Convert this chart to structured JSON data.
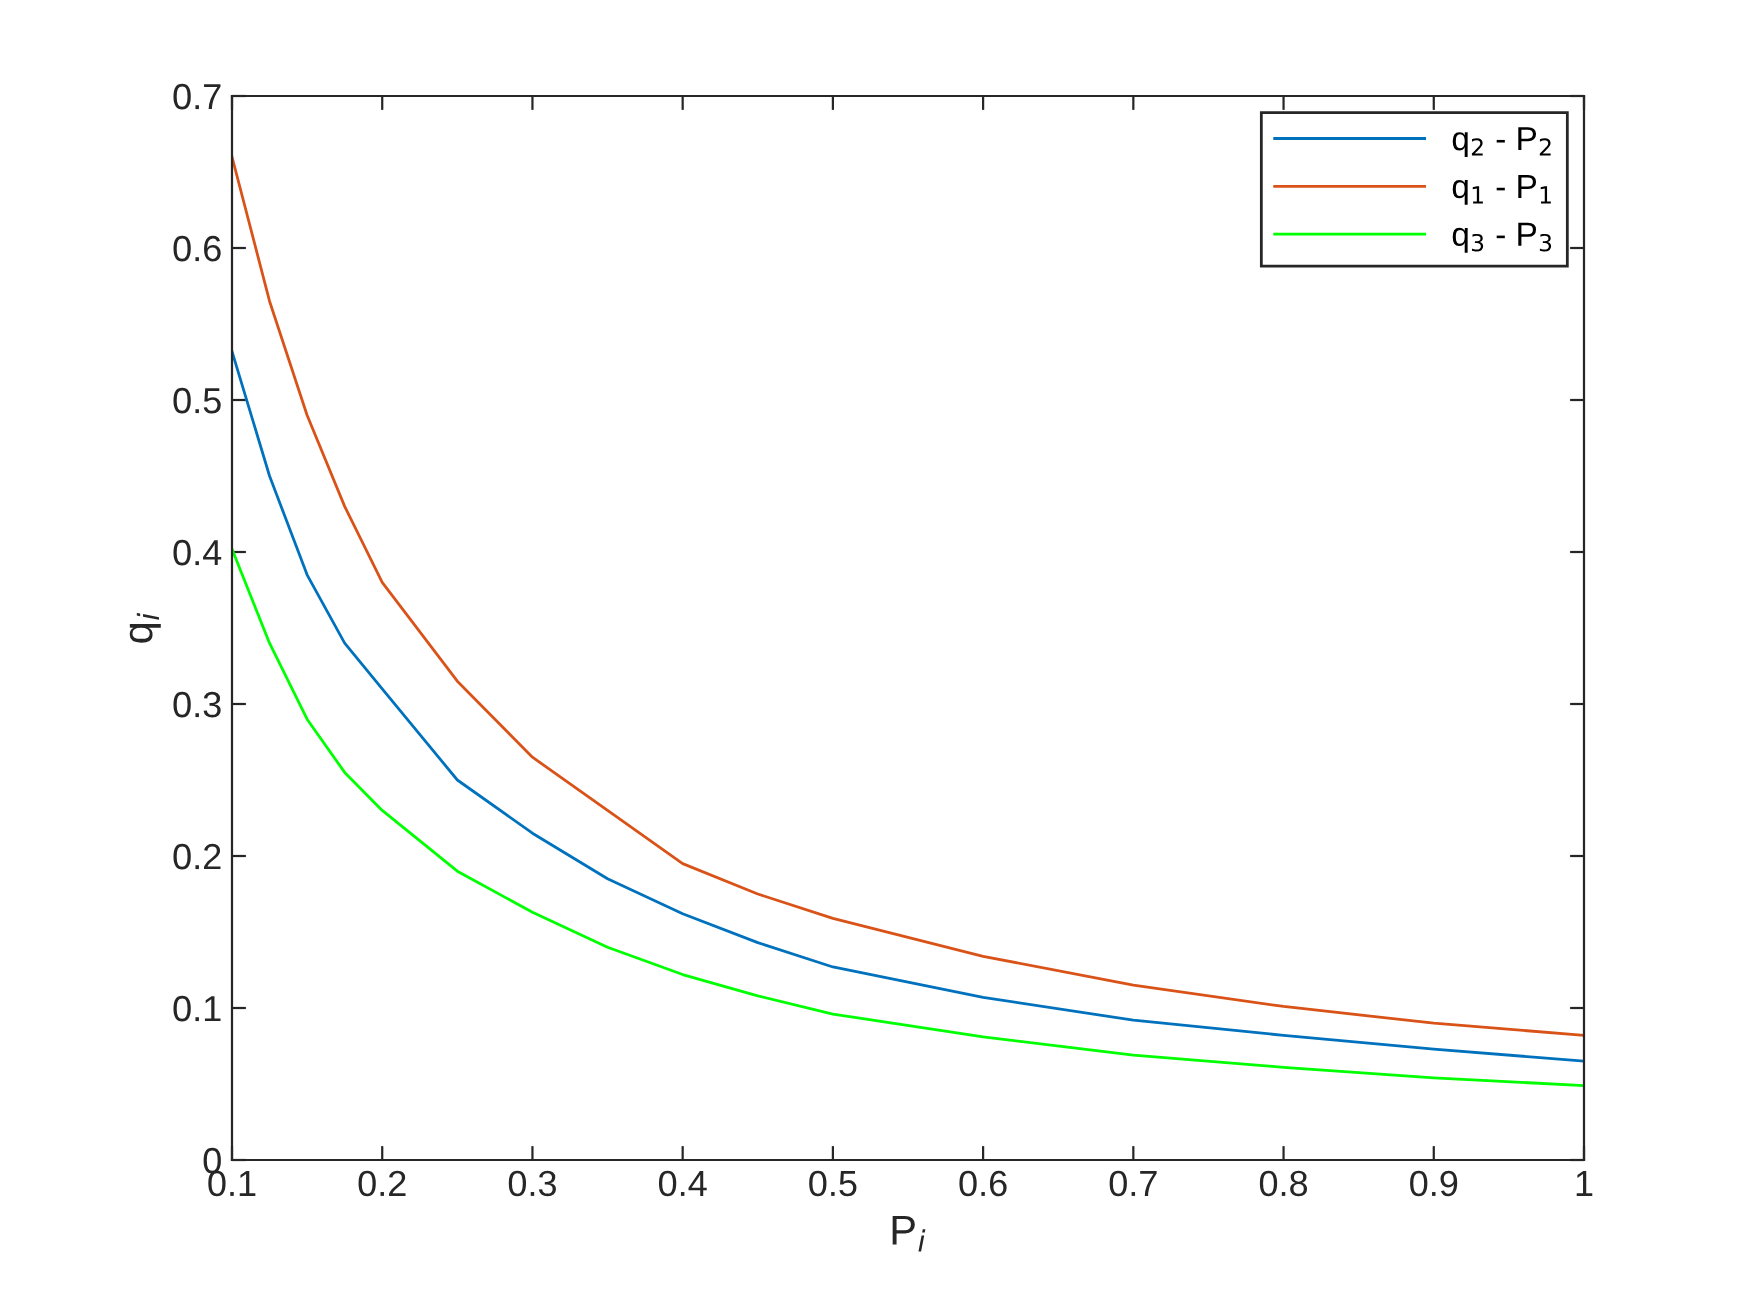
{
  "chart_data": {
    "type": "line",
    "xlabel": "P$_{i}$",
    "ylabel": "q$_{i}$",
    "x": [
      0.1,
      0.125,
      0.15,
      0.175,
      0.2,
      0.25,
      0.3,
      0.35,
      0.4,
      0.45,
      0.5,
      0.6,
      0.7,
      0.8,
      0.9,
      1
    ],
    "series": [
      {
        "name": "q$_{2}$ - P$_{2}$",
        "color": "#0072bd",
        "values": [
          0.532,
          0.45,
          0.385,
          0.34,
          0.31,
          0.25,
          0.215,
          0.185,
          0.162,
          0.143,
          0.127,
          0.107,
          0.092,
          0.082,
          0.073,
          0.065
        ]
      },
      {
        "name": "q$_{1}$ - P$_{1}$",
        "color": "#d95319",
        "values": [
          0.66,
          0.565,
          0.49,
          0.43,
          0.38,
          0.315,
          0.265,
          0.23,
          0.195,
          0.175,
          0.159,
          0.134,
          0.115,
          0.101,
          0.09,
          0.082
        ]
      },
      {
        "name": "q$_{3}$ - P$_{3}$",
        "color": "#00ff00",
        "values": [
          0.402,
          0.34,
          0.29,
          0.255,
          0.23,
          0.19,
          0.163,
          0.14,
          0.122,
          0.108,
          0.096,
          0.081,
          0.069,
          0.061,
          0.054,
          0.049
        ]
      }
    ],
    "xlim": [
      0.1,
      1
    ],
    "xticks": [
      0.1,
      0.2,
      0.3,
      0.4,
      0.5,
      0.6,
      0.7,
      0.8,
      0.9,
      1
    ],
    "ylim": [
      0,
      0.7
    ],
    "yticks": [
      0,
      0.1,
      0.2,
      0.3,
      0.4,
      0.5,
      0.6,
      0.7
    ],
    "grid": false,
    "legend": "top right"
  }
}
